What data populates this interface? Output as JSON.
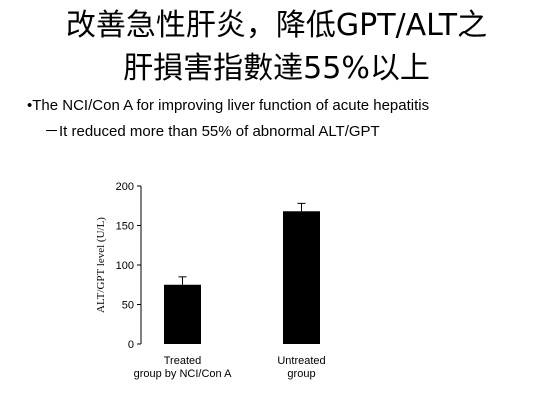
{
  "slide": {
    "title_line1": "改善急性肝炎，降低GPT/ALT之",
    "title_line2": "肝損害指數達55%以上",
    "bullet1": "•The NCI/Con A for improving liver function of acute hepatitis",
    "bullet2": "－It reduced more than 55% of abnormal ALT/GPT"
  },
  "chart_data": {
    "type": "bar",
    "categories": [
      "Treated\ngroup by NCI/Con A",
      "Untreated\ngroup"
    ],
    "values": [
      75,
      168
    ],
    "errors": [
      10,
      10
    ],
    "ylabel": "ALT/GPT level (U/L)",
    "xlabel": "",
    "ylim": [
      0,
      200
    ],
    "yticks": [
      0,
      50,
      100,
      150,
      200
    ],
    "bar_color": "#000000",
    "grid": false
  }
}
